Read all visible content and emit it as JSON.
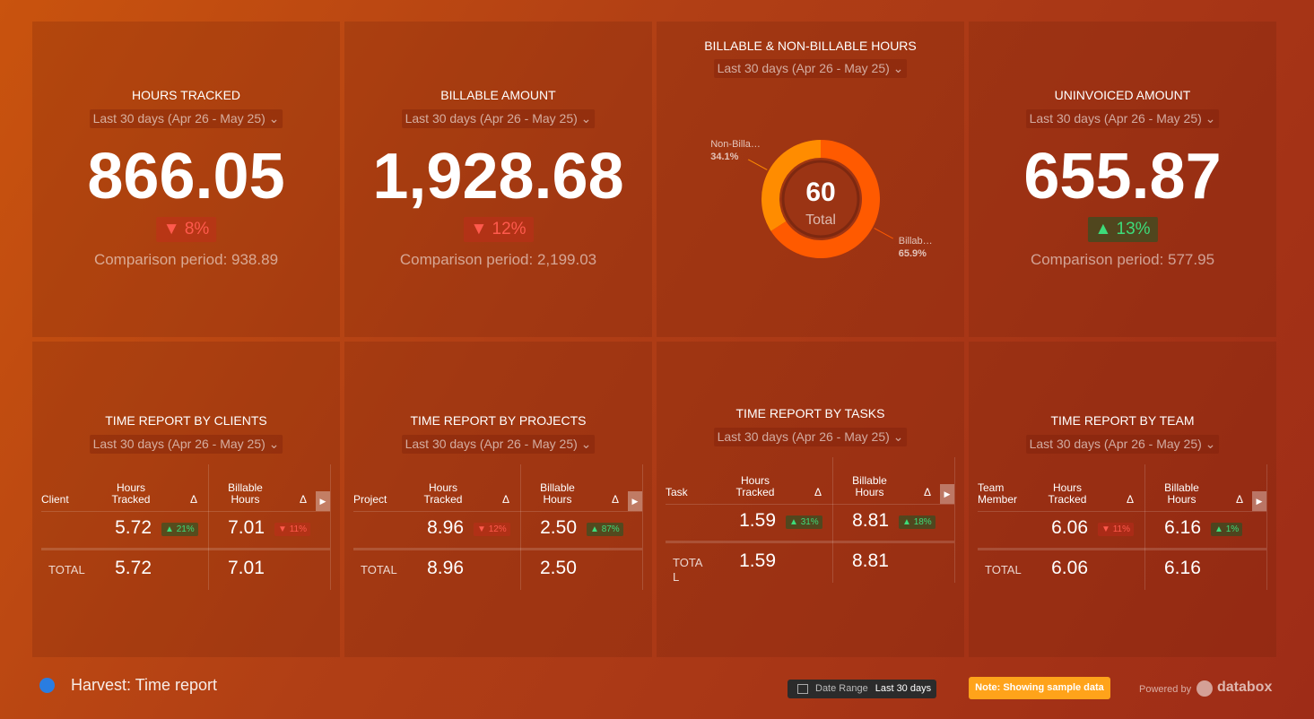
{
  "metrics": [
    {
      "title": "HOURS TRACKED",
      "period": "Last 30 days (Apr 26 - May 25)",
      "value": "866.05",
      "change": "8%",
      "direction": "down",
      "comparison": "Comparison period: 938.89"
    },
    {
      "title": "BILLABLE AMOUNT",
      "period": "Last 30 days (Apr 26 - May 25)",
      "value": "1,928.68",
      "change": "12%",
      "direction": "down",
      "comparison": "Comparison period: 2,199.03"
    },
    {
      "title": "UNINVOICED AMOUNT",
      "period": "Last 30 days (Apr 26 - May 25)",
      "value": "655.87",
      "change": "13%",
      "direction": "up",
      "comparison": "Comparison period: 577.95"
    }
  ],
  "donut": {
    "title": "BILLABLE & NON-BILLABLE HOURS",
    "period": "Last 30 days (Apr 26 - May 25)",
    "center_value": "60",
    "center_label": "Total",
    "segments": [
      {
        "label": "Billab…",
        "value": 65.9,
        "value_label": "65.9%",
        "color": "#ff5a00"
      },
      {
        "label": "Non-Billa…",
        "value": 34.1,
        "value_label": "34.1%",
        "color": "#ff8c00"
      }
    ]
  },
  "tables": [
    {
      "title": "TIME REPORT BY CLIENTS",
      "period": "Last 30 days (Apr 26 - May 25)",
      "headers": [
        "Client",
        "Hours Tracked",
        "Δ",
        "Billable Hours",
        "Δ"
      ],
      "row": {
        "hours": "5.72",
        "hours_delta": "21%",
        "hours_dir": "up",
        "billable": "7.01",
        "billable_delta": "11%",
        "billable_dir": "down"
      },
      "total": {
        "label": "TOTAL",
        "hours": "5.72",
        "billable": "7.01"
      }
    },
    {
      "title": "TIME REPORT BY PROJECTS",
      "period": "Last 30 days (Apr 26 - May 25)",
      "headers": [
        "Project",
        "Hours Tracked",
        "Δ",
        "Billable Hours",
        "Δ"
      ],
      "row": {
        "hours": "8.96",
        "hours_delta": "12%",
        "hours_dir": "down",
        "billable": "2.50",
        "billable_delta": "87%",
        "billable_dir": "up"
      },
      "total": {
        "label": "TOTAL",
        "hours": "8.96",
        "billable": "2.50"
      }
    },
    {
      "title": "TIME REPORT BY TASKS",
      "period": "Last 30 days (Apr 26 - May 25)",
      "headers": [
        "Task",
        "Hours Tracked",
        "Δ",
        "Billable Hours",
        "Δ"
      ],
      "row": {
        "hours": "1.59",
        "hours_delta": "31%",
        "hours_dir": "up",
        "billable": "8.81",
        "billable_delta": "18%",
        "billable_dir": "up"
      },
      "total": {
        "label": "TOTAL",
        "hours": "1.59",
        "billable": "8.81"
      }
    },
    {
      "title": "TIME REPORT BY TEAM",
      "period": "Last 30 days (Apr 26 - May 25)",
      "headers": [
        "Team Member",
        "Hours Tracked",
        "Δ",
        "Billable Hours",
        "Δ"
      ],
      "row": {
        "hours": "6.06",
        "hours_delta": "11%",
        "hours_dir": "down",
        "billable": "6.16",
        "billable_delta": "1%",
        "billable_dir": "up"
      },
      "total": {
        "label": "TOTAL",
        "hours": "6.06",
        "billable": "6.16"
      }
    }
  ],
  "footer": {
    "title": "Harvest: Time report",
    "date_range_label": "Date Range",
    "date_range_value": "Last 30 days",
    "note": "Note: Showing sample data",
    "powered_by": "Powered by",
    "brand": "databox"
  }
}
